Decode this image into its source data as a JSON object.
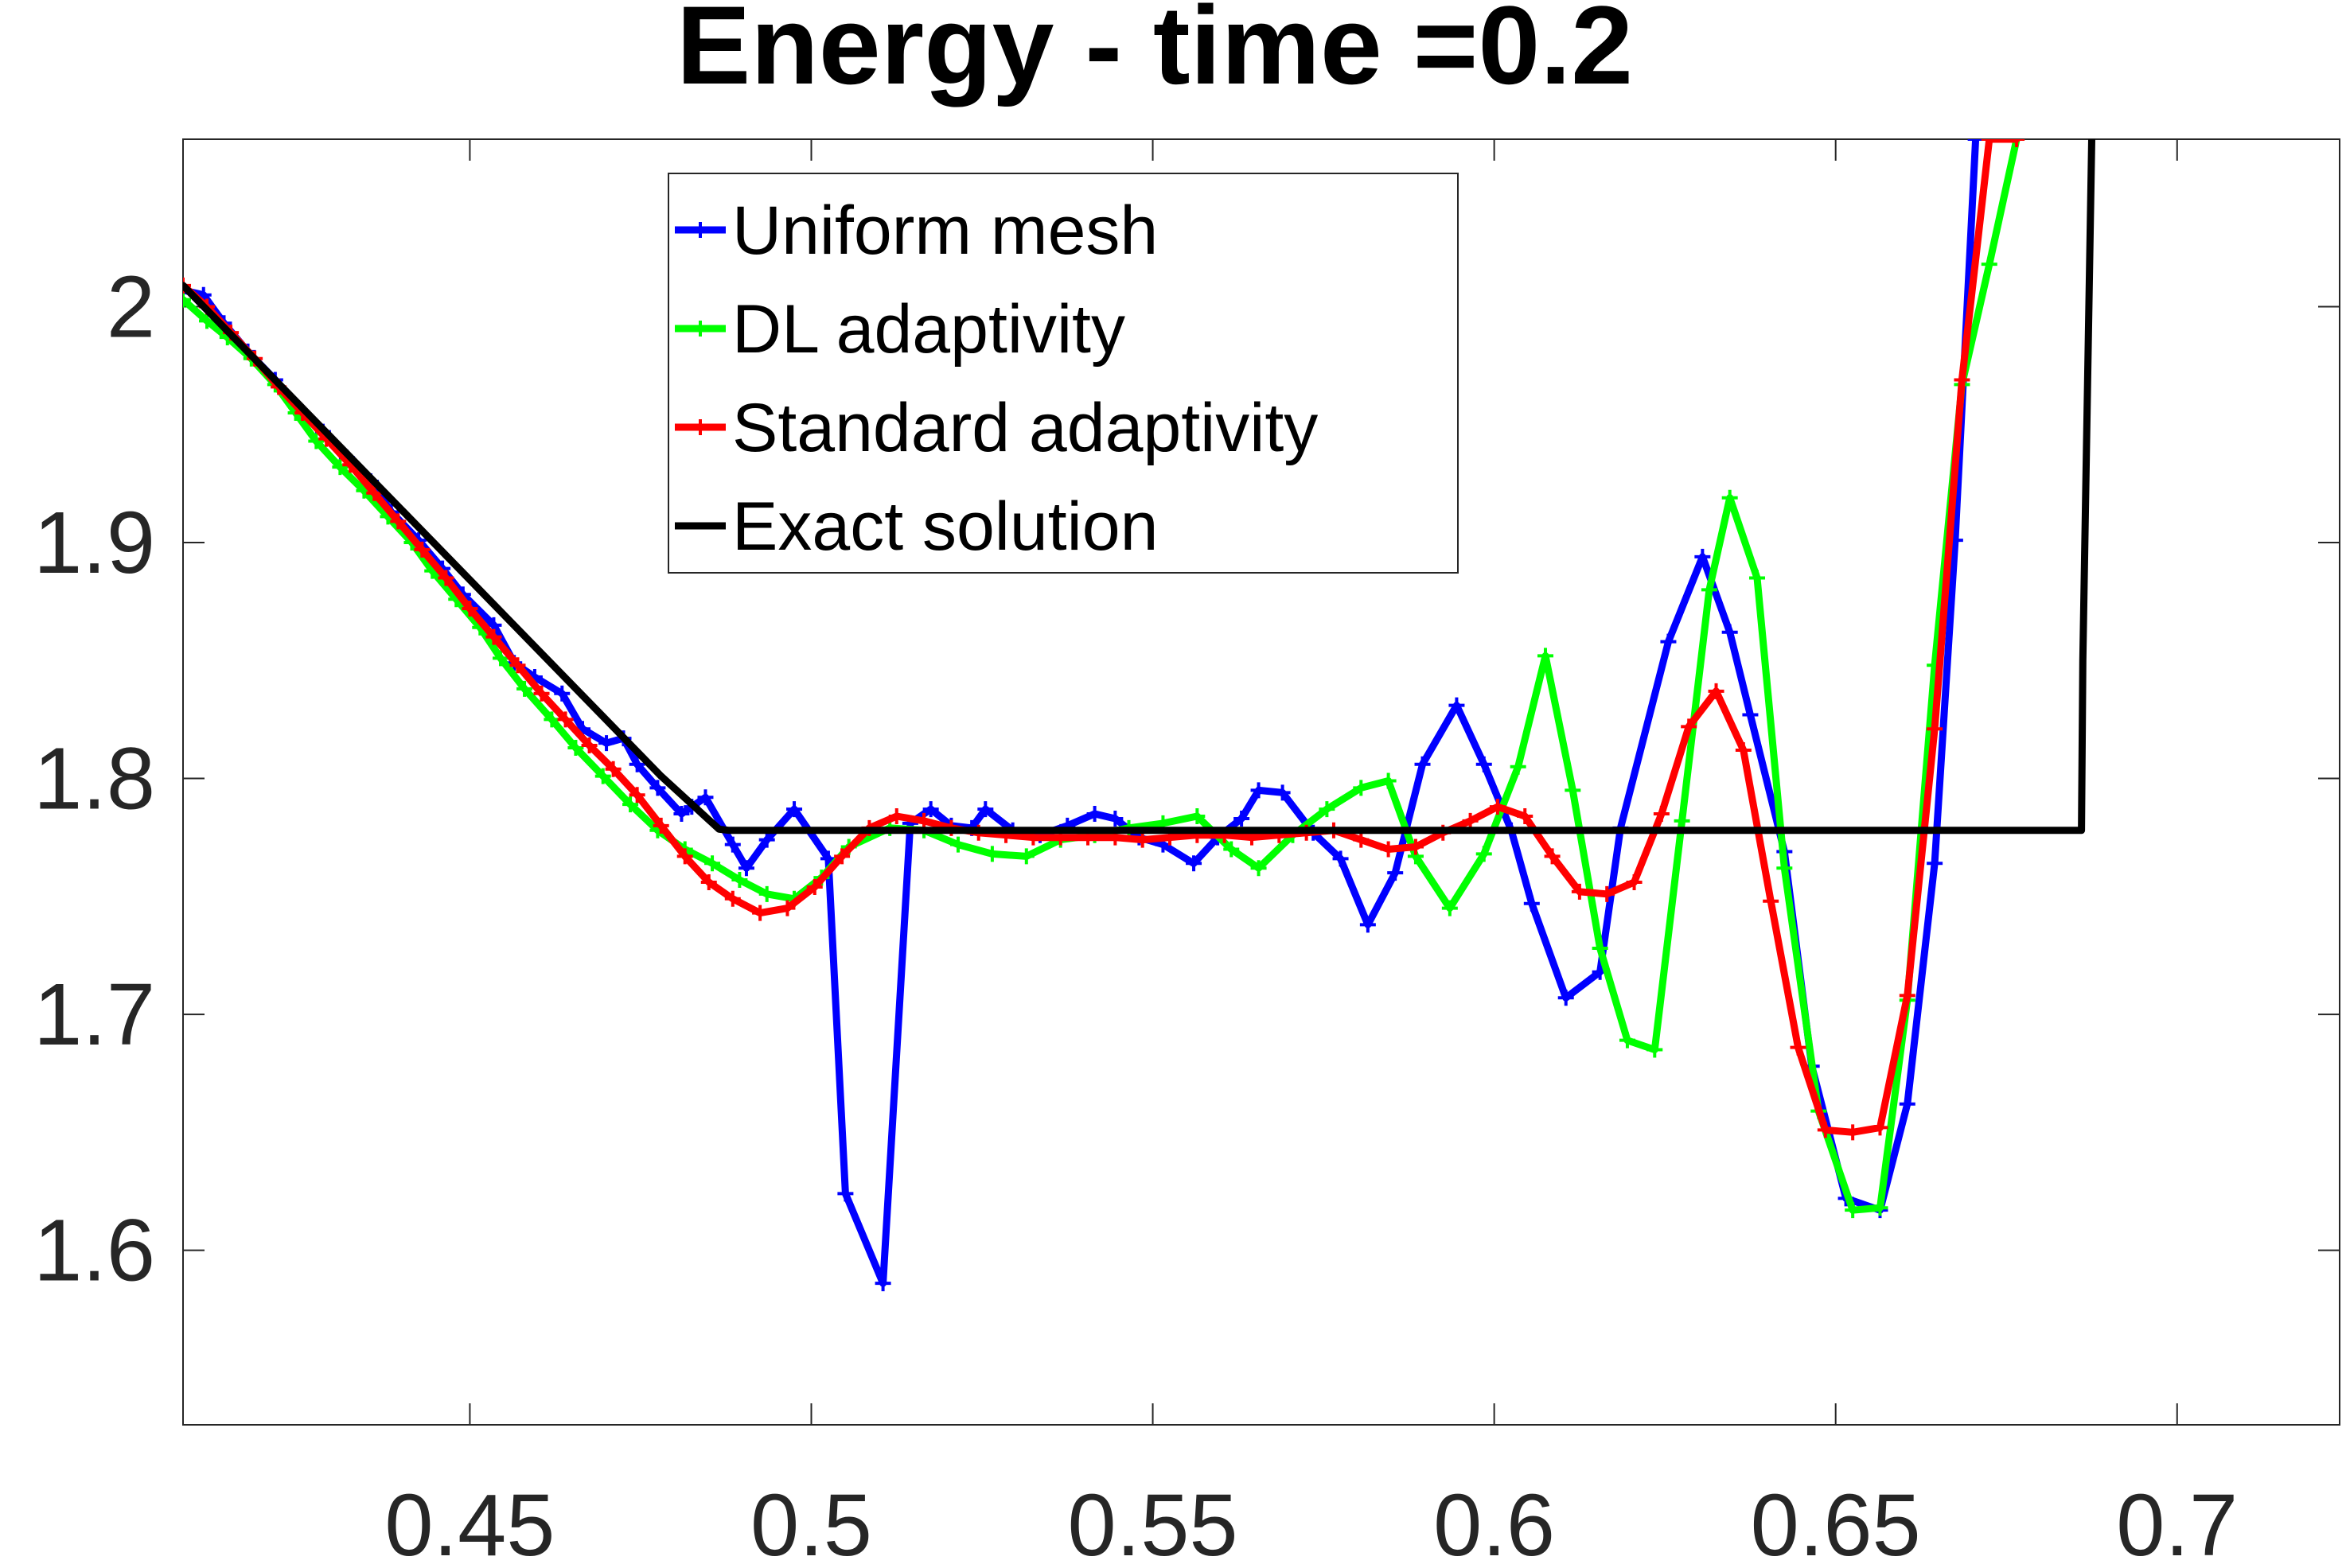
{
  "chart_data": {
    "type": "line",
    "title": "Energy - time =0.2",
    "xlabel": "",
    "ylabel": "",
    "xlim": [
      0.408,
      0.7238
    ],
    "ylim": [
      1.526,
      2.071
    ],
    "xticks": [
      0.45,
      0.5,
      0.55,
      0.6,
      0.65,
      0.7
    ],
    "xtick_labels": [
      "0.45",
      "0.5",
      "0.55",
      "0.6",
      "0.65",
      "0.7"
    ],
    "yticks": [
      1.6,
      1.7,
      1.8,
      1.9,
      2.0
    ],
    "ytick_labels": [
      "1.6",
      "1.7",
      "1.8",
      "1.9",
      "2"
    ],
    "grid": false,
    "legend_position": "top-center",
    "series": [
      {
        "name": "Uniform mesh",
        "color": "#0000ff",
        "marker": "+",
        "x": [
          0.408,
          0.411,
          0.414,
          0.4175,
          0.4215,
          0.4245,
          0.4285,
          0.432,
          0.4355,
          0.4385,
          0.4425,
          0.446,
          0.449,
          0.4535,
          0.4565,
          0.4595,
          0.4635,
          0.4665,
          0.47,
          0.4725,
          0.4745,
          0.4775,
          0.481,
          0.4825,
          0.4845,
          0.4885,
          0.4905,
          0.4935,
          0.4975,
          0.5025,
          0.505,
          0.5105,
          0.5145,
          0.5175,
          0.5205,
          0.5235,
          0.5255,
          0.5295,
          0.5335,
          0.5375,
          0.5415,
          0.5445,
          0.548,
          0.5515,
          0.556,
          0.5595,
          0.563,
          0.5655,
          0.569,
          0.5735,
          0.5775,
          0.5815,
          0.5855,
          0.5895,
          0.5945,
          0.5985,
          0.6025,
          0.6055,
          0.6105,
          0.6155,
          0.6185,
          0.6255,
          0.6305,
          0.6345,
          0.6375,
          0.6425,
          0.6465,
          0.6515,
          0.6565,
          0.6605,
          0.6645,
          0.6675,
          0.6705
        ],
        "y": [
          2.007,
          2.005,
          1.993,
          1.981,
          1.969,
          1.958,
          1.947,
          1.936,
          1.926,
          1.913,
          1.901,
          1.889,
          1.878,
          1.865,
          1.849,
          1.843,
          1.836,
          1.821,
          1.815,
          1.817,
          1.806,
          1.796,
          1.785,
          1.788,
          1.792,
          1.772,
          1.762,
          1.774,
          1.787,
          1.766,
          1.624,
          1.586,
          1.781,
          1.787,
          1.78,
          1.779,
          1.787,
          1.778,
          1.776,
          1.78,
          1.785,
          1.783,
          1.775,
          1.772,
          1.764,
          1.775,
          1.783,
          1.795,
          1.794,
          1.777,
          1.766,
          1.738,
          1.76,
          1.806,
          1.831,
          1.806,
          1.778,
          1.747,
          1.707,
          1.718,
          1.779,
          1.858,
          1.894,
          1.862,
          1.827,
          1.769,
          1.678,
          1.622,
          1.617,
          1.662,
          1.764,
          1.901,
          2.071
        ]
      },
      {
        "name": "DL adaptivity",
        "color": "#00ff00",
        "marker": "+",
        "x": [
          0.408,
          0.4115,
          0.4145,
          0.418,
          0.4215,
          0.4245,
          0.4275,
          0.431,
          0.4345,
          0.438,
          0.4415,
          0.4445,
          0.448,
          0.4515,
          0.4545,
          0.458,
          0.462,
          0.4655,
          0.4695,
          0.4735,
          0.4775,
          0.4815,
          0.4855,
          0.4895,
          0.4935,
          0.4975,
          0.5015,
          0.5055,
          0.5115,
          0.5165,
          0.5215,
          0.5265,
          0.5315,
          0.5365,
          0.5415,
          0.5465,
          0.5515,
          0.5565,
          0.5615,
          0.5655,
          0.5705,
          0.5755,
          0.5805,
          0.5845,
          0.5885,
          0.5935,
          0.5985,
          0.6035,
          0.6075,
          0.6115,
          0.6155,
          0.6195,
          0.6235,
          0.6275,
          0.6315,
          0.6345,
          0.6385,
          0.6425,
          0.6475,
          0.6525,
          0.6565,
          0.6605,
          0.6645,
          0.6685,
          0.6725,
          0.6765
        ],
        "y": [
          2.003,
          1.994,
          1.987,
          1.978,
          1.967,
          1.955,
          1.943,
          1.932,
          1.922,
          1.911,
          1.9,
          1.888,
          1.876,
          1.864,
          1.851,
          1.838,
          1.825,
          1.813,
          1.801,
          1.789,
          1.778,
          1.77,
          1.764,
          1.757,
          1.751,
          1.749,
          1.758,
          1.771,
          1.779,
          1.778,
          1.772,
          1.768,
          1.767,
          1.774,
          1.776,
          1.779,
          1.781,
          1.784,
          1.77,
          1.762,
          1.776,
          1.787,
          1.796,
          1.799,
          1.767,
          1.745,
          1.768,
          1.805,
          1.852,
          1.795,
          1.728,
          1.689,
          1.685,
          1.782,
          1.88,
          1.919,
          1.885,
          1.762,
          1.659,
          1.617,
          1.618,
          1.706,
          1.848,
          1.967,
          2.018,
          2.071
        ]
      },
      {
        "name": "Standard adaptivity",
        "color": "#ff0000",
        "marker": "+",
        "x": [
          0.408,
          0.4115,
          0.415,
          0.4185,
          0.422,
          0.4255,
          0.429,
          0.4325,
          0.436,
          0.4395,
          0.443,
          0.4465,
          0.45,
          0.4535,
          0.457,
          0.4605,
          0.464,
          0.4675,
          0.471,
          0.4745,
          0.478,
          0.4815,
          0.485,
          0.4885,
          0.4925,
          0.4965,
          0.5005,
          0.5045,
          0.5085,
          0.5125,
          0.5165,
          0.5205,
          0.5245,
          0.5285,
          0.5325,
          0.5365,
          0.5405,
          0.5445,
          0.5485,
          0.5525,
          0.5565,
          0.5605,
          0.5645,
          0.5685,
          0.5725,
          0.5765,
          0.5805,
          0.5845,
          0.5885,
          0.5925,
          0.5965,
          0.6005,
          0.6045,
          0.6085,
          0.6125,
          0.6165,
          0.6205,
          0.6245,
          0.6285,
          0.6325,
          0.6365,
          0.6405,
          0.6445,
          0.6485,
          0.6525,
          0.6565,
          0.6605,
          0.6645,
          0.6685,
          0.6725,
          0.6765
        ],
        "y": [
          2.009,
          2.0,
          1.989,
          1.978,
          1.966,
          1.955,
          1.944,
          1.933,
          1.921,
          1.909,
          1.897,
          1.885,
          1.872,
          1.86,
          1.848,
          1.836,
          1.825,
          1.814,
          1.804,
          1.793,
          1.78,
          1.767,
          1.756,
          1.749,
          1.743,
          1.745,
          1.754,
          1.767,
          1.779,
          1.784,
          1.782,
          1.779,
          1.777,
          1.776,
          1.775,
          1.775,
          1.775,
          1.775,
          1.774,
          1.775,
          1.776,
          1.776,
          1.775,
          1.776,
          1.777,
          1.778,
          1.774,
          1.77,
          1.771,
          1.777,
          1.782,
          1.788,
          1.784,
          1.767,
          1.752,
          1.751,
          1.756,
          1.785,
          1.822,
          1.837,
          1.812,
          1.748,
          1.686,
          1.651,
          1.65,
          1.652,
          1.708,
          1.821,
          1.969,
          2.071,
          2.071
        ]
      },
      {
        "name": "Exact solution",
        "color": "#000000",
        "marker": "none",
        "x": [
          0.408,
          0.478,
          0.4865,
          0.488,
          0.686,
          0.6862,
          0.6875
        ],
        "y": [
          2.009,
          1.801,
          1.7785,
          1.778,
          1.778,
          1.85,
          2.071
        ]
      }
    ]
  }
}
